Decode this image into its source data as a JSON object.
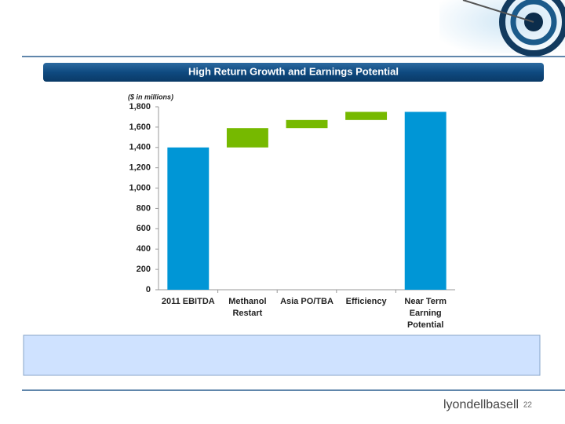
{
  "slide": {
    "title": "High Return Growth and Earnings Potential",
    "page_number": "22",
    "logo": "lyondellbasell"
  },
  "chart_data": {
    "type": "waterfall",
    "axis_label": "($ in millions)",
    "categories": [
      "2011 EBITDA",
      "Methanol Restart",
      "Asia PO/TBA",
      "Efficiency",
      "Near Term Earning Potential"
    ],
    "values": [
      1400,
      190,
      80,
      80,
      1750
    ],
    "measure": [
      "absolute",
      "relative",
      "relative",
      "relative",
      "absolute"
    ],
    "colors": [
      "#0096d6",
      "#76b900",
      "#76b900",
      "#76b900",
      "#0096d6"
    ],
    "ylim": [
      0,
      1800
    ],
    "yticks": [
      0,
      200,
      400,
      600,
      800,
      {
        "value": 1000,
        "label": "1,000"
      },
      {
        "value": 1200,
        "label": "1,200"
      },
      {
        "value": 1400,
        "label": "1,400"
      },
      {
        "value": 1600,
        "label": "1,600"
      },
      {
        "value": 1800,
        "label": "1,800"
      }
    ],
    "grid": false
  }
}
